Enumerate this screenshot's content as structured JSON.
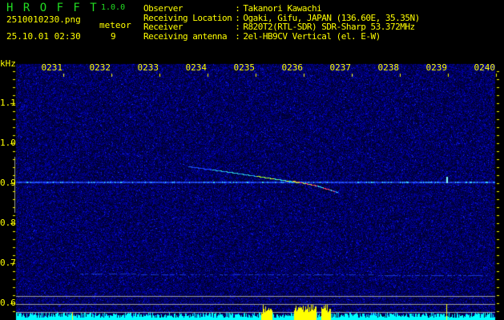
{
  "header": {
    "app_name": "H R O F F T",
    "version": "1.0.0",
    "filename": "2510010230.png",
    "datetime": "25.10.01 02:30",
    "meteor_label": "meteor",
    "meteor_count": "9",
    "info": [
      {
        "label": "Observer",
        "sep": ":",
        "value": "Takanori Kawachi"
      },
      {
        "label": "Receiving Location",
        "sep": ":",
        "value": "Ogaki, Gifu, JAPAN (136.60E, 35.35N)"
      },
      {
        "label": "Receiver",
        "sep": ":",
        "value": "R820T2(RTL-SDR) SDR-Sharp 53.372MHz"
      },
      {
        "label": "Receiving antenna",
        "sep": ":",
        "value": "2el-HB9CV Vertical (el. E-W)"
      }
    ]
  },
  "colors": {
    "text": "#ffff00",
    "logo": "#22dd22",
    "background_noise": "#10107a",
    "histogram": "#00ffff",
    "histogram_meteor": "#ffff00",
    "guide_lines": "#a0a0a0"
  },
  "chart_data": {
    "type": "heatmap",
    "ylabel": "kHz",
    "x_tick_labels": [
      "0231",
      "0232",
      "0233",
      "0234",
      "0235",
      "0236",
      "0237",
      "0238",
      "0239",
      "0240"
    ],
    "xlim": [
      "0230",
      "0240"
    ],
    "y_tick_labels": [
      "1.1",
      "1.0",
      "0.9",
      "0.8",
      "0.7",
      "0.6"
    ],
    "ylim": [
      0.58,
      1.2
    ],
    "carrier_khz": 0.905,
    "meteor_echoes": [
      {
        "start": "0234.1",
        "end": "0236.9",
        "f_start_khz": 0.94,
        "f_end_khz": 0.88
      },
      {
        "start": "0239.4",
        "end": "0239.4",
        "f_start_khz": 0.91,
        "f_end_khz": 0.9
      }
    ]
  }
}
